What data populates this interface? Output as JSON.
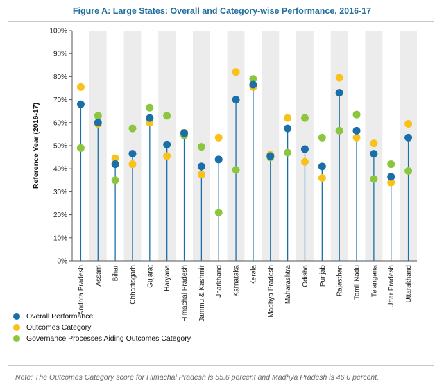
{
  "colors": {
    "overall": "#1a6fa8",
    "outcomes": "#f9c21a",
    "governance": "#8cc63f",
    "band": "#ececec",
    "stem": "#1a6fa8"
  },
  "legend": [
    {
      "label": "Overall Performance",
      "color": "#1a6fa8"
    },
    {
      "label": "Outcomes Category",
      "color": "#f9c21a"
    },
    {
      "label": "Governance Processes Aiding Outcomes Category",
      "color": "#8cc63f"
    }
  ],
  "note": "Note: The Outcomes Category score for Himachal Pradesh is 55.6 percent and Madhya Pradesh is 46.0 percent.",
  "chart_data": {
    "type": "scatter",
    "title": "Figure A: Large States: Overall and Category-wise Performance, 2016-17",
    "xlabel": "",
    "ylabel": "Reference Year (2016-17)",
    "ylim": [
      0,
      100
    ],
    "yticks": [
      "0%",
      "10%",
      "20%",
      "30%",
      "40%",
      "50%",
      "60%",
      "70%",
      "80%",
      "90%",
      "100%"
    ],
    "categories": [
      "Andhra Pradesh",
      "Assam",
      "Bihar",
      "Chhattisgarh",
      "Gujarat",
      "Haryana",
      "Himachal Pradesh",
      "Jammu & Kashmir",
      "Jharkhand",
      "Karnataka",
      "Kerala",
      "Madhya Pradesh",
      "Maharashtra",
      "Odisha",
      "Punjab",
      "Rajasthan",
      "Tamil Nadu",
      "Telangana",
      "Uttar Pradesh",
      "Uttarakhand"
    ],
    "series": [
      {
        "name": "Overall Performance",
        "values": [
          68,
          60,
          42,
          46.5,
          62,
          50.5,
          55.5,
          41,
          44,
          70,
          76.5,
          45.5,
          57.5,
          48.5,
          41,
          73,
          56.5,
          46.5,
          36.5,
          53.5
        ]
      },
      {
        "name": "Outcomes Category",
        "values": [
          75.5,
          59.5,
          44.5,
          42,
          60,
          45.5,
          55.6,
          37.5,
          53.5,
          82,
          75.5,
          46.0,
          62,
          43,
          36,
          79.5,
          53.5,
          51,
          34,
          59.5
        ]
      },
      {
        "name": "Governance Processes Aiding Outcomes Category",
        "values": [
          49,
          63,
          35,
          57.5,
          66.5,
          63,
          54.5,
          49.5,
          21,
          39.5,
          79,
          45,
          47,
          62,
          53.5,
          56.5,
          63.5,
          35.5,
          42,
          39
        ]
      }
    ],
    "grid": false
  }
}
